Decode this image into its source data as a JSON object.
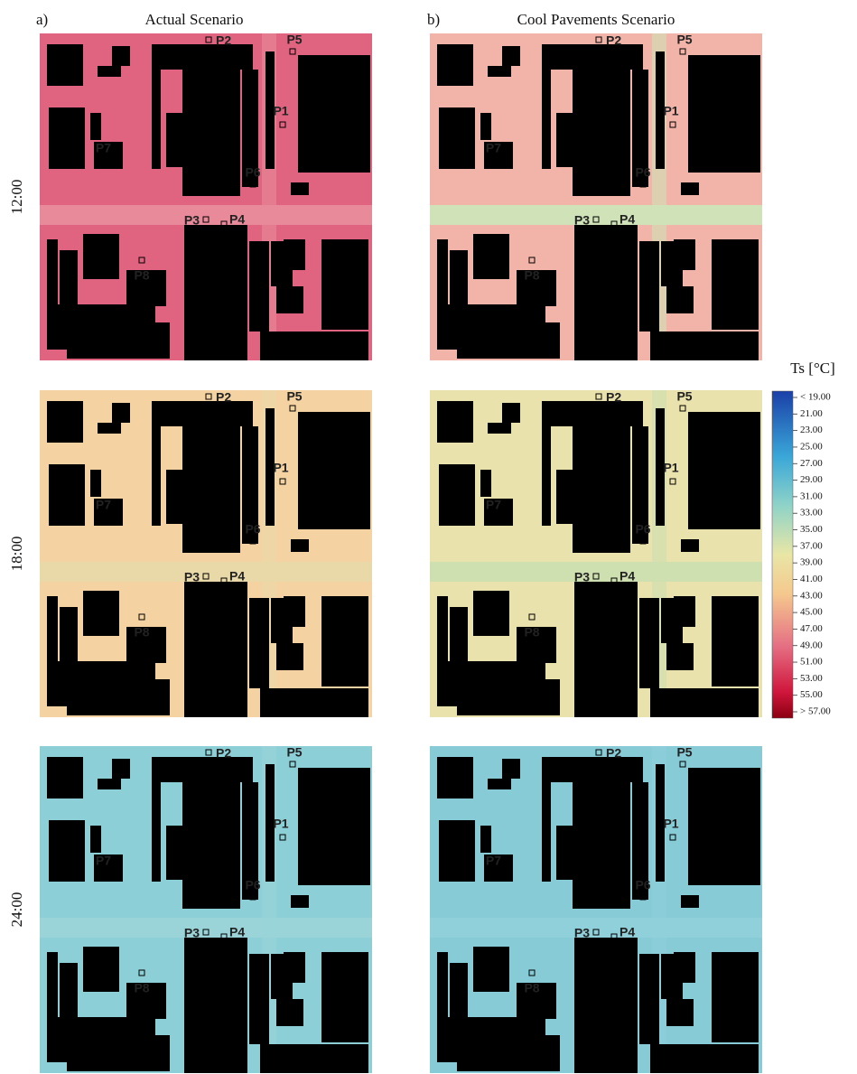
{
  "header": {
    "columns": [
      {
        "letter": "a)",
        "title": "Actual Scenario"
      },
      {
        "letter": "b)",
        "title": "Cool Pavements Scenario"
      }
    ]
  },
  "row_labels": [
    "12:00",
    "18:00",
    "24:00"
  ],
  "points": [
    "P1",
    "P2",
    "P3",
    "P4",
    "P5",
    "P6",
    "P7",
    "P8"
  ],
  "colorbar": {
    "title": "Ts [°C]",
    "ticks": [
      "< 19.00",
      "21.00",
      "23.00",
      "25.00",
      "27.00",
      "29.00",
      "31.00",
      "33.00",
      "35.00",
      "37.00",
      "39.00",
      "41.00",
      "43.00",
      "45.00",
      "47.00",
      "49.00",
      "51.00",
      "53.00",
      "55.00",
      "> 57.00"
    ]
  }
}
